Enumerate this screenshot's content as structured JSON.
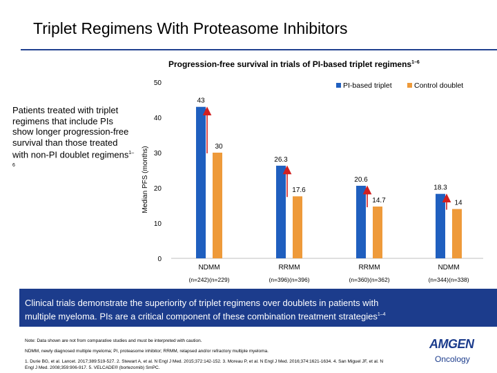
{
  "slide": {
    "title": "Triplet Regimens With Proteasome Inhibitors"
  },
  "chart_title": {
    "text": "Progression-free survival in trials of PI-based triplet regimens",
    "sup": "1–6"
  },
  "left_text": {
    "text": "Patients treated with triplet regimens that include PIs show longer progression-free survival than those treated with non-PI doublet regimens",
    "sup": "1–6"
  },
  "chart_data": {
    "type": "bar",
    "ylabel": "Median PFS (months)",
    "ylim": [
      0,
      50
    ],
    "yticks": [
      0,
      10,
      20,
      30,
      40,
      50
    ],
    "categories": [
      "NDMM",
      "RRMM",
      "RRMM",
      "NDMM"
    ],
    "category_sublabels": [
      "(n=242)(n=229)",
      "(n=396)(n=396)",
      "(n=360)(n=362)",
      "(n=344)(n=338)"
    ],
    "series": [
      {
        "name": "PI-based triplet",
        "color": "#1f5fbf",
        "values": [
          43,
          26.3,
          20.6,
          18.3
        ],
        "labels": [
          "43",
          "26.3",
          "20.6",
          "18.3"
        ]
      },
      {
        "name": "Control doublet",
        "color": "#ee9a3a",
        "values": [
          30,
          17.6,
          14.7,
          14
        ],
        "labels": [
          "30",
          "17.6",
          "14.7",
          "14"
        ]
      }
    ],
    "legend": "top-right",
    "grid": false,
    "arrow_color": "#d21f1f"
  },
  "banner": {
    "line1": "Clinical trials demonstrate the superiority of triplet regimens over doublets in patients with",
    "line2": "multiple myeloma. PIs are a critical component of these combination treatment strategies",
    "sup": "1–4"
  },
  "footer": {
    "note": "Note: Data shown are not from comparative studies and must be interpreted with caution.",
    "abbreviations": "NDMM, newly diagnosed multiple myeloma; PI, proteasome inhibitor; RRMM, relapsed and/or refractory multiple myeloma.",
    "references": "1. Durie BG, et al. Lancet. 2017;389:519-527. 2. Stewart A, et al. N Engl J Med. 2015;372:142-152. 3. Moreau P, et al. N Engl J Med. 2016;374:1621-1634. 4. San Miguel JF, et al. N Engl J Med. 2008;359:906-917. 5. VELCADE® (bortezomib) SmPC."
  },
  "logo": {
    "brand": "AMGEN",
    "sub": "Oncology"
  }
}
